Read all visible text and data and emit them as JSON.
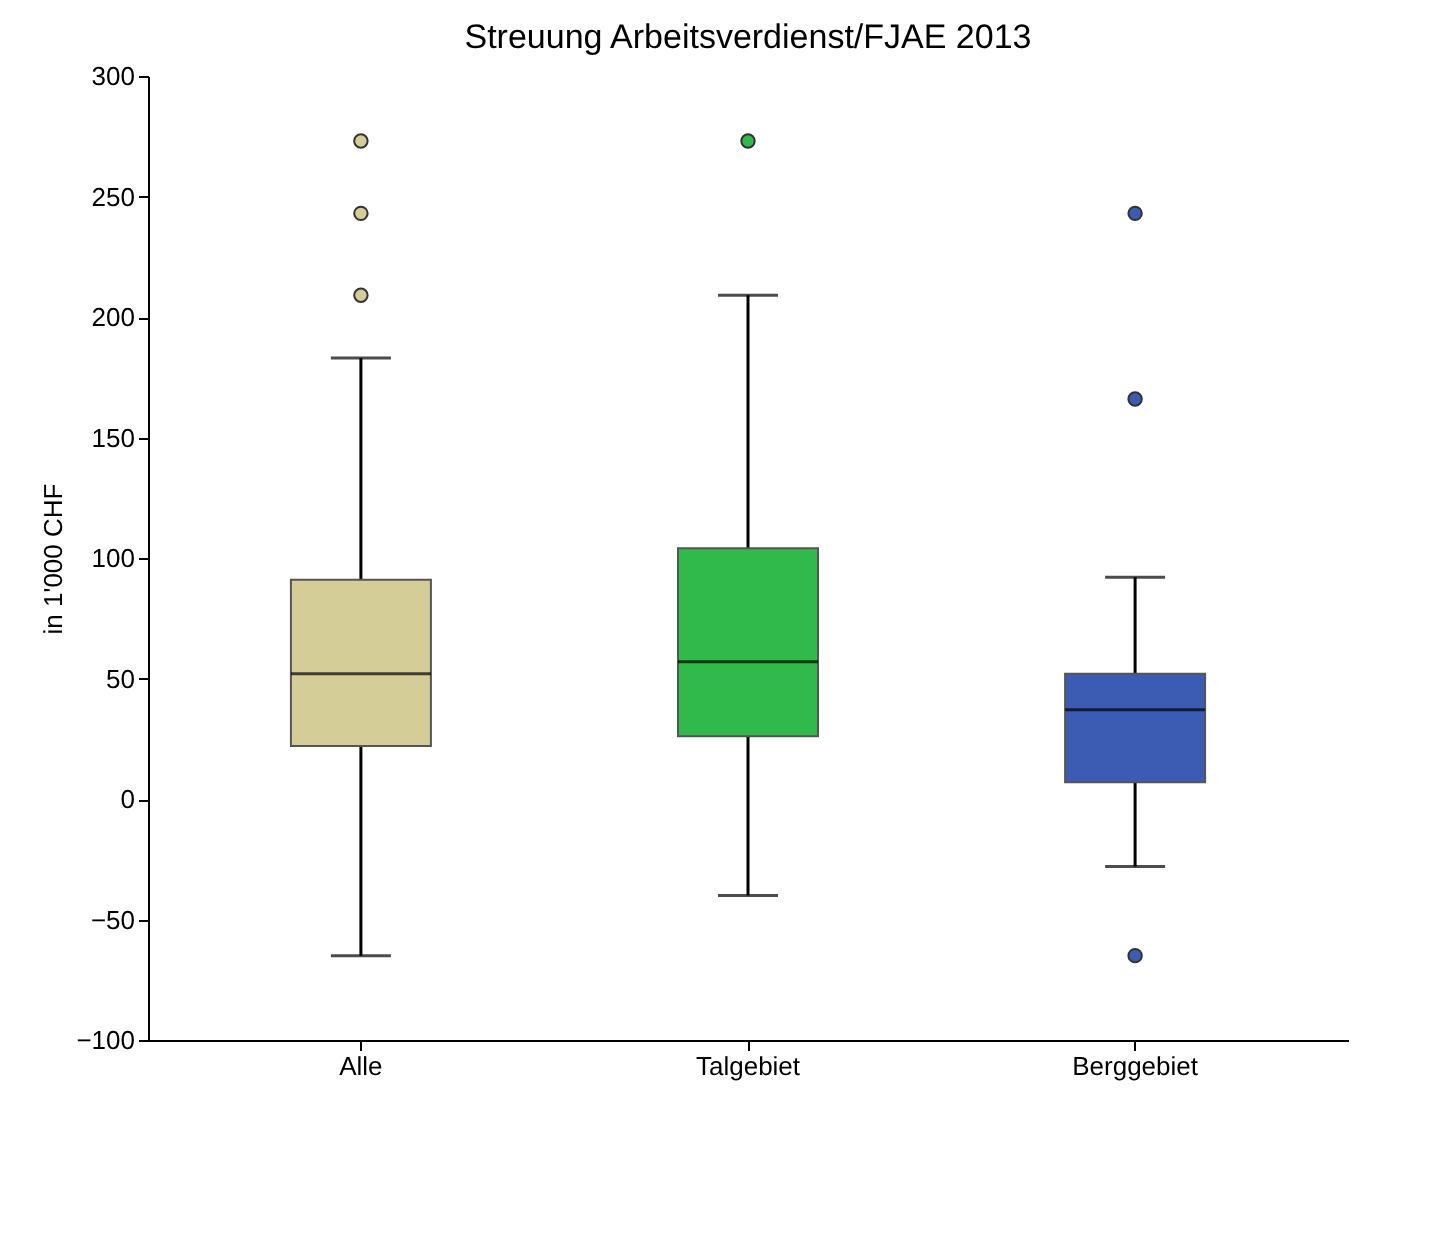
{
  "chart_data": {
    "type": "box",
    "title": "Streuung Arbeitsverdienst/FJAE 2013",
    "ylabel": "in 1'000 CHF",
    "categories": [
      "Alle",
      "Talgebiet",
      "Berggebiet"
    ],
    "colors": [
      "#d4cd98",
      "#2fba4b",
      "#3c5cb3"
    ],
    "boxes": [
      {
        "low": -65,
        "q1": 22,
        "median": 52,
        "q3": 91,
        "high": 183,
        "outliers": [
          273,
          243,
          209
        ]
      },
      {
        "low": -40,
        "q1": 26,
        "median": 57,
        "q3": 104,
        "high": 209,
        "outliers": [
          273
        ]
      },
      {
        "low": -28,
        "q1": 7,
        "median": 37,
        "q3": 52,
        "high": 92,
        "outliers": [
          243,
          166,
          -65
        ]
      }
    ],
    "ylim": [
      -100,
      300
    ],
    "yticks": [
      -100,
      -50,
      0,
      50,
      100,
      150,
      200,
      250,
      300
    ],
    "grid": false
  }
}
